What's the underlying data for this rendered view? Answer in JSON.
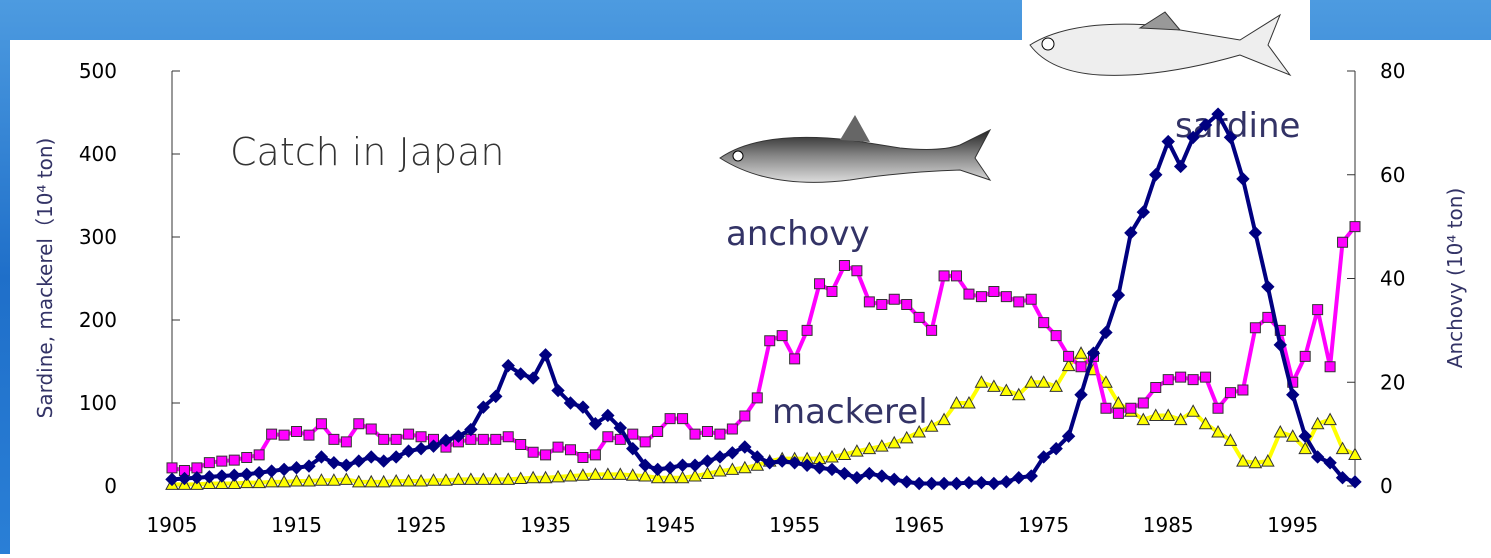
{
  "chart_data": {
    "type": "line",
    "annotations": [
      "Catch in Japan",
      "anchovy",
      "sardine",
      "mackerel"
    ],
    "y_label": "Sardine, mackerel（10⁴ ton)",
    "y2_label": "Anchovy (10⁴ ton)",
    "x": [
      1905,
      1906,
      1907,
      1908,
      1909,
      1910,
      1911,
      1912,
      1913,
      1914,
      1915,
      1916,
      1917,
      1918,
      1919,
      1920,
      1921,
      1922,
      1923,
      1924,
      1925,
      1926,
      1927,
      1928,
      1929,
      1930,
      1931,
      1932,
      1933,
      1934,
      1935,
      1936,
      1937,
      1938,
      1939,
      1940,
      1941,
      1942,
      1943,
      1944,
      1945,
      1946,
      1947,
      1948,
      1949,
      1950,
      1951,
      1952,
      1953,
      1954,
      1955,
      1956,
      1957,
      1958,
      1959,
      1960,
      1961,
      1962,
      1963,
      1964,
      1965,
      1966,
      1967,
      1968,
      1969,
      1970,
      1971,
      1972,
      1973,
      1974,
      1975,
      1976,
      1977,
      1978,
      1979,
      1980,
      1981,
      1982,
      1983,
      1984,
      1985,
      1986,
      1987,
      1988,
      1989,
      1990,
      1991,
      1992,
      1993,
      1994,
      1995,
      1996,
      1997,
      1998,
      1999,
      2000
    ],
    "xlim": [
      1905,
      2000
    ],
    "xticks": [
      1905,
      1915,
      1925,
      1935,
      1945,
      1955,
      1965,
      1975,
      1985,
      1995
    ],
    "ylim": [
      0,
      500
    ],
    "yticks": [
      0,
      100,
      200,
      300,
      400,
      500
    ],
    "y2lim": [
      0,
      80
    ],
    "y2ticks": [
      0,
      20,
      40,
      60,
      80
    ],
    "series": [
      {
        "name": "sardine",
        "color": "#000080",
        "marker": "diamond",
        "values": [
          8,
          9,
          10,
          11,
          12,
          13,
          14,
          16,
          18,
          20,
          22,
          24,
          35,
          28,
          25,
          30,
          35,
          30,
          35,
          42,
          45,
          48,
          55,
          60,
          68,
          95,
          108,
          145,
          135,
          130,
          158,
          115,
          100,
          95,
          75,
          85,
          70,
          45,
          25,
          20,
          22,
          25,
          25,
          30,
          35,
          40,
          47,
          35,
          28,
          30,
          28,
          25,
          22,
          20,
          15,
          10,
          15,
          12,
          8,
          5,
          3,
          3,
          3,
          3,
          4,
          4,
          3,
          5,
          10,
          12,
          35,
          45,
          60,
          110,
          160,
          185,
          230,
          305,
          330,
          375,
          415,
          385,
          420,
          435,
          448,
          420,
          370,
          305,
          240,
          170,
          110,
          60,
          35,
          28,
          10,
          5
        ]
      },
      {
        "name": "anchovy",
        "color": "#ff00ff",
        "marker": "square",
        "axis": "y2",
        "values": [
          3.5,
          3,
          3.5,
          4.5,
          4.8,
          5,
          5.5,
          6,
          10,
          9.8,
          10.5,
          9.8,
          12,
          9,
          8.5,
          12,
          11,
          9,
          9,
          10,
          9.5,
          9,
          7.5,
          8.5,
          9,
          9,
          9,
          9.5,
          8,
          6.5,
          6,
          7.5,
          7,
          5.5,
          6,
          9.5,
          9,
          10,
          8.5,
          10.5,
          13,
          13,
          10,
          10.5,
          10,
          11,
          13.5,
          17,
          28,
          29,
          24.5,
          30,
          39,
          37.5,
          42.5,
          41.5,
          35.5,
          35,
          36,
          35,
          32.5,
          30,
          40.5,
          40.5,
          37,
          36.5,
          37.5,
          36.5,
          35.5,
          36,
          31.5,
          29,
          25,
          23,
          25,
          15,
          14,
          15,
          16,
          19,
          20.5,
          21,
          20.5,
          21,
          15,
          18,
          18.5,
          30.5,
          32.5,
          30,
          20,
          25,
          34,
          23,
          47,
          50
        ]
      },
      {
        "name": "mackerel",
        "color": "#ffff00",
        "marker": "triangle",
        "values": [
          2,
          2,
          2,
          3,
          3,
          3,
          4,
          4,
          5,
          5,
          6,
          6,
          7,
          7,
          8,
          5,
          5,
          5,
          6,
          6,
          6,
          7,
          7,
          8,
          8,
          8,
          8,
          8,
          9,
          10,
          10,
          11,
          12,
          13,
          14,
          14,
          14,
          13,
          12,
          10,
          10,
          10,
          12,
          15,
          18,
          20,
          22,
          25,
          30,
          33,
          33,
          33,
          33,
          35,
          38,
          42,
          45,
          48,
          52,
          58,
          65,
          72,
          80,
          100,
          100,
          125,
          120,
          115,
          110,
          125,
          125,
          120,
          145,
          160,
          140,
          125,
          100,
          90,
          80,
          85,
          85,
          80,
          90,
          75,
          65,
          55,
          30,
          28,
          30,
          65,
          60,
          45,
          75,
          80,
          45,
          38
        ]
      }
    ]
  }
}
